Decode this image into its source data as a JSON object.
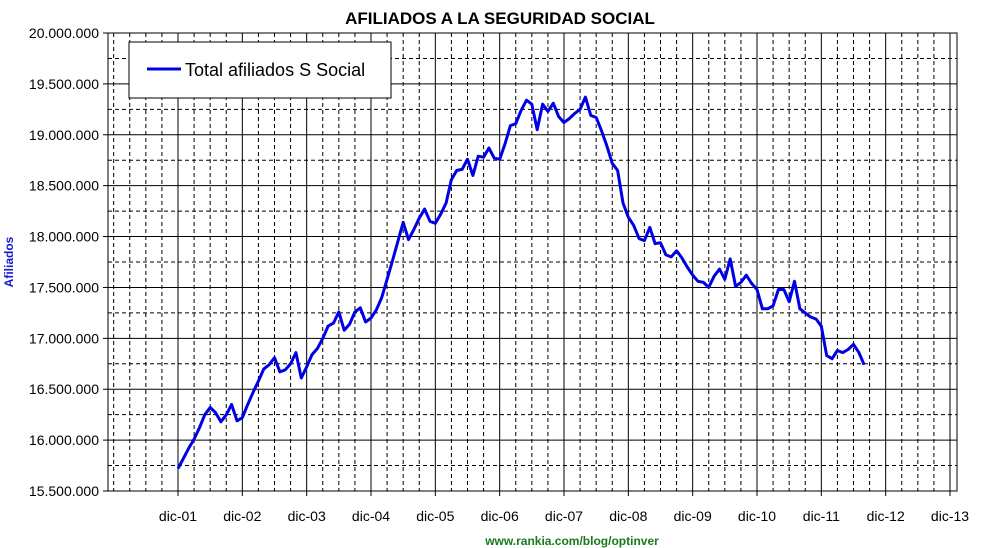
{
  "chart_data": {
    "type": "line",
    "title": "AFILIADOS A LA SEGURIDAD SOCIAL",
    "ylabel": "Afiliados",
    "xlabel": "",
    "footer": "www.rankia.com/blog/optinver",
    "ylim": [
      15500000,
      20000000
    ],
    "y_ticks": [
      {
        "value": 15500000,
        "label": "15.500.000"
      },
      {
        "value": 16000000,
        "label": "16.000.000"
      },
      {
        "value": 16500000,
        "label": "16.500.000"
      },
      {
        "value": 17000000,
        "label": "17.000.000"
      },
      {
        "value": 17500000,
        "label": "17.500.000"
      },
      {
        "value": 18000000,
        "label": "18.000.000"
      },
      {
        "value": 18500000,
        "label": "18.500.000"
      },
      {
        "value": 19000000,
        "label": "19.000.000"
      },
      {
        "value": 19500000,
        "label": "19.500.000"
      },
      {
        "value": 20000000,
        "label": "20.000.000"
      }
    ],
    "x_ticks": [
      "dic-01",
      "dic-02",
      "dic-03",
      "dic-04",
      "dic-05",
      "dic-06",
      "dic-07",
      "dic-08",
      "dic-09",
      "dic-10",
      "dic-11",
      "dic-12",
      "dic-13"
    ],
    "grid": true,
    "legend_position": "top-left",
    "series": [
      {
        "name": "Total afiliados S Social",
        "color": "#0000e6",
        "start": "dic-01",
        "values": [
          15720000,
          15820000,
          15920000,
          16010000,
          16120000,
          16250000,
          16320000,
          16270000,
          16180000,
          16250000,
          16350000,
          16190000,
          16220000,
          16350000,
          16470000,
          16580000,
          16700000,
          16740000,
          16810000,
          16670000,
          16690000,
          16750000,
          16860000,
          16610000,
          16720000,
          16840000,
          16900000,
          17000000,
          17120000,
          17150000,
          17260000,
          17080000,
          17140000,
          17260000,
          17300000,
          17160000,
          17200000,
          17280000,
          17400000,
          17580000,
          17760000,
          17950000,
          18140000,
          17970000,
          18070000,
          18180000,
          18270000,
          18150000,
          18130000,
          18220000,
          18330000,
          18560000,
          18650000,
          18660000,
          18760000,
          18600000,
          18790000,
          18780000,
          18870000,
          18770000,
          18760000,
          18910000,
          19090000,
          19110000,
          19240000,
          19340000,
          19300000,
          19050000,
          19300000,
          19230000,
          19310000,
          19180000,
          19120000,
          19160000,
          19210000,
          19250000,
          19370000,
          19190000,
          19170000,
          19040000,
          18890000,
          18720000,
          18650000,
          18330000,
          18190000,
          18110000,
          17980000,
          17960000,
          18090000,
          17930000,
          17940000,
          17820000,
          17800000,
          17860000,
          17790000,
          17700000,
          17620000,
          17560000,
          17550000,
          17500000,
          17610000,
          17680000,
          17580000,
          17780000,
          17510000,
          17550000,
          17620000,
          17540000,
          17480000,
          17290000,
          17290000,
          17320000,
          17480000,
          17480000,
          17360000,
          17560000,
          17290000,
          17250000,
          17210000,
          17190000,
          17120000,
          16830000,
          16800000,
          16880000,
          16860000,
          16890000,
          16940000,
          16860000,
          16740000
        ]
      }
    ]
  }
}
